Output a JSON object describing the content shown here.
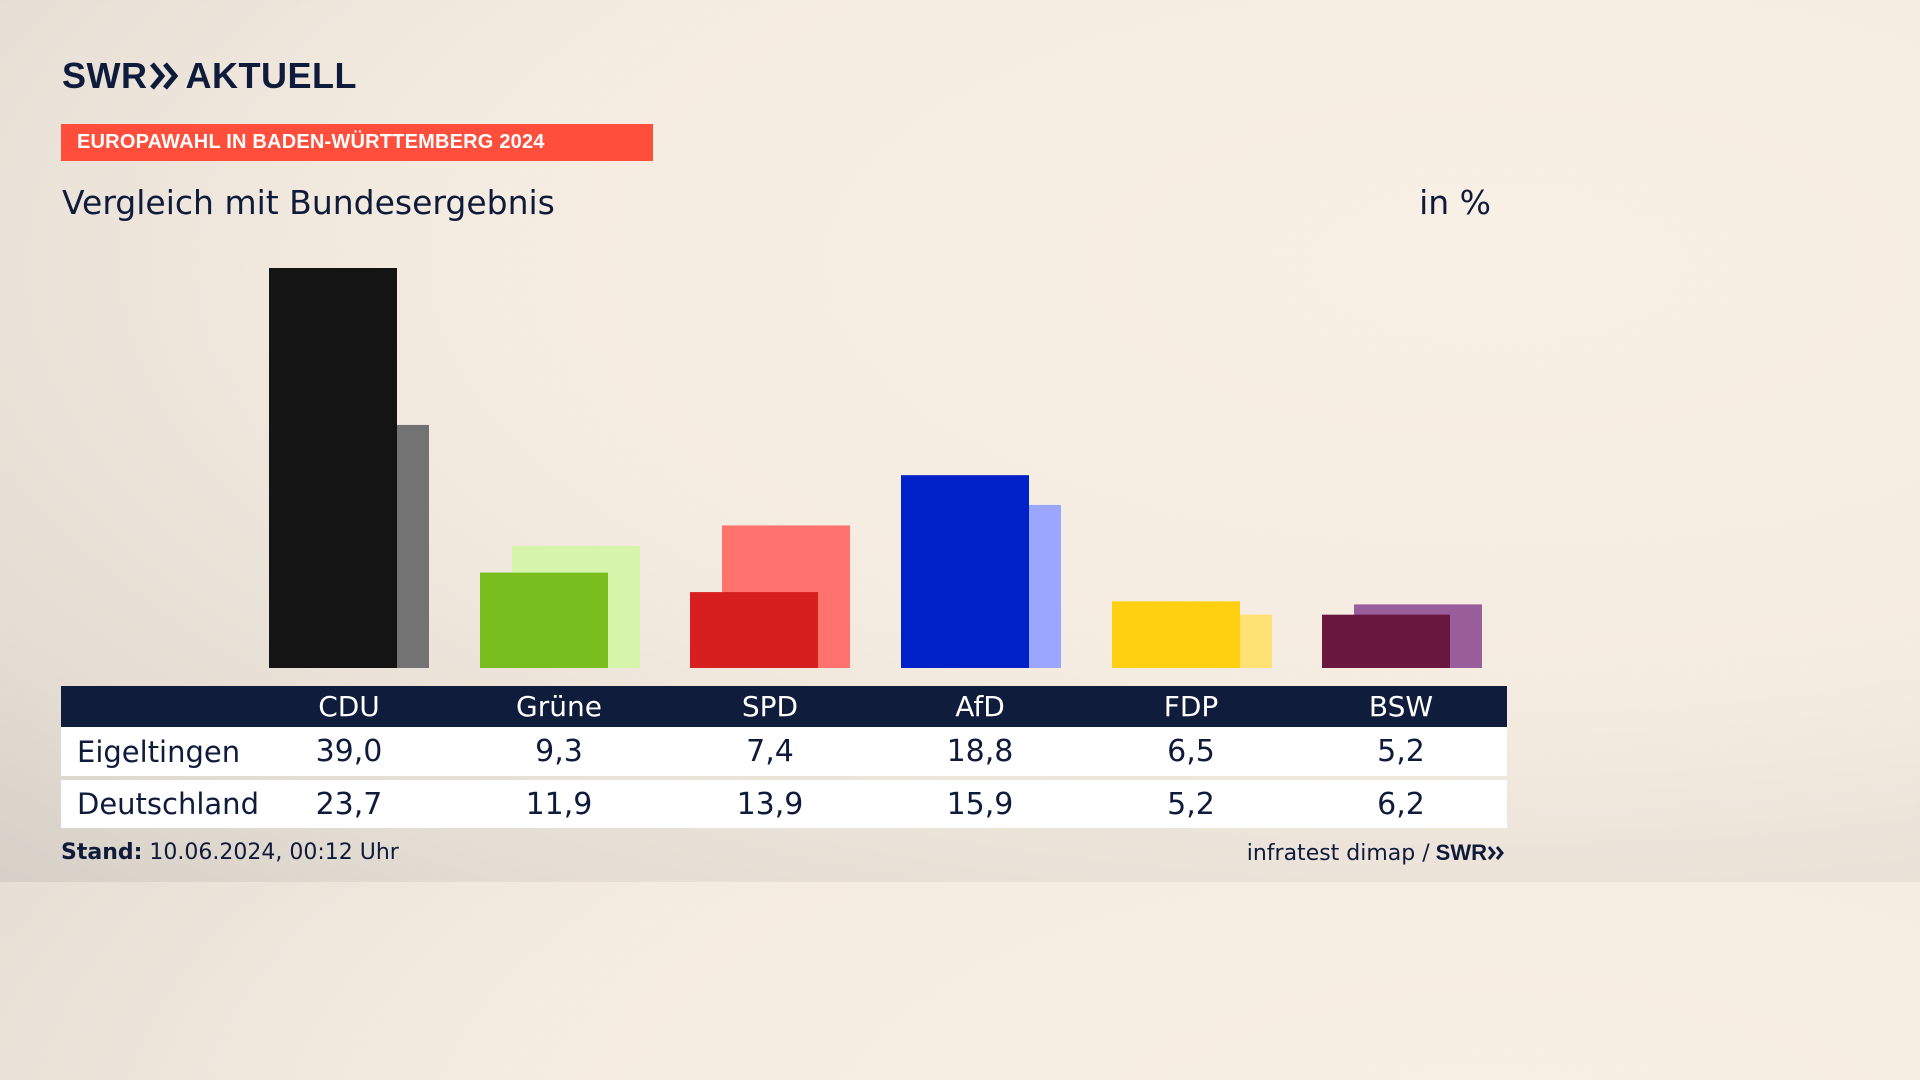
{
  "header": {
    "logo_text_1": "SWR",
    "logo_text_2": "AKTUELL",
    "banner": "EUROPAWAHL IN BADEN-WÜRTTEMBERG 2024",
    "subtitle": "Vergleich mit Bundesergebnis",
    "unit": "in %"
  },
  "colors": {
    "banner": "#ff4f3c",
    "navy": "#0f1c3c"
  },
  "chart_data": {
    "type": "bar",
    "categories": [
      "CDU",
      "Grüne",
      "SPD",
      "AfD",
      "FDP",
      "BSW"
    ],
    "series": [
      {
        "name": "Eigeltingen",
        "values": [
          39.0,
          9.3,
          7.4,
          18.8,
          6.5,
          5.2
        ],
        "colors": [
          "#141414",
          "#78be1e",
          "#d71f1f",
          "#0020c8",
          "#ffd00f",
          "#6b1840"
        ]
      },
      {
        "name": "Deutschland",
        "values": [
          23.7,
          11.9,
          13.9,
          15.9,
          5.2,
          6.2
        ],
        "colors": [
          "#737373",
          "#d7f5aa",
          "#ff736e",
          "#9aa6ff",
          "#ffe273",
          "#9a5e9a"
        ]
      }
    ],
    "ylim": [
      0,
      39
    ]
  },
  "table": {
    "headers": [
      "CDU",
      "Grüne",
      "SPD",
      "AfD",
      "FDP",
      "BSW"
    ],
    "rows": [
      {
        "label": "Eigeltingen",
        "values": [
          "39,0",
          "9,3",
          "7,4",
          "18,8",
          "6,5",
          "5,2"
        ]
      },
      {
        "label": "Deutschland",
        "values": [
          "23,7",
          "11,9",
          "13,9",
          "15,9",
          "5,2",
          "6,2"
        ]
      }
    ]
  },
  "footer": {
    "stand_label": "Stand:",
    "stand_value": "10.06.2024, 00:12 Uhr",
    "source": "infratest dimap /",
    "source_logo": "SWR"
  }
}
